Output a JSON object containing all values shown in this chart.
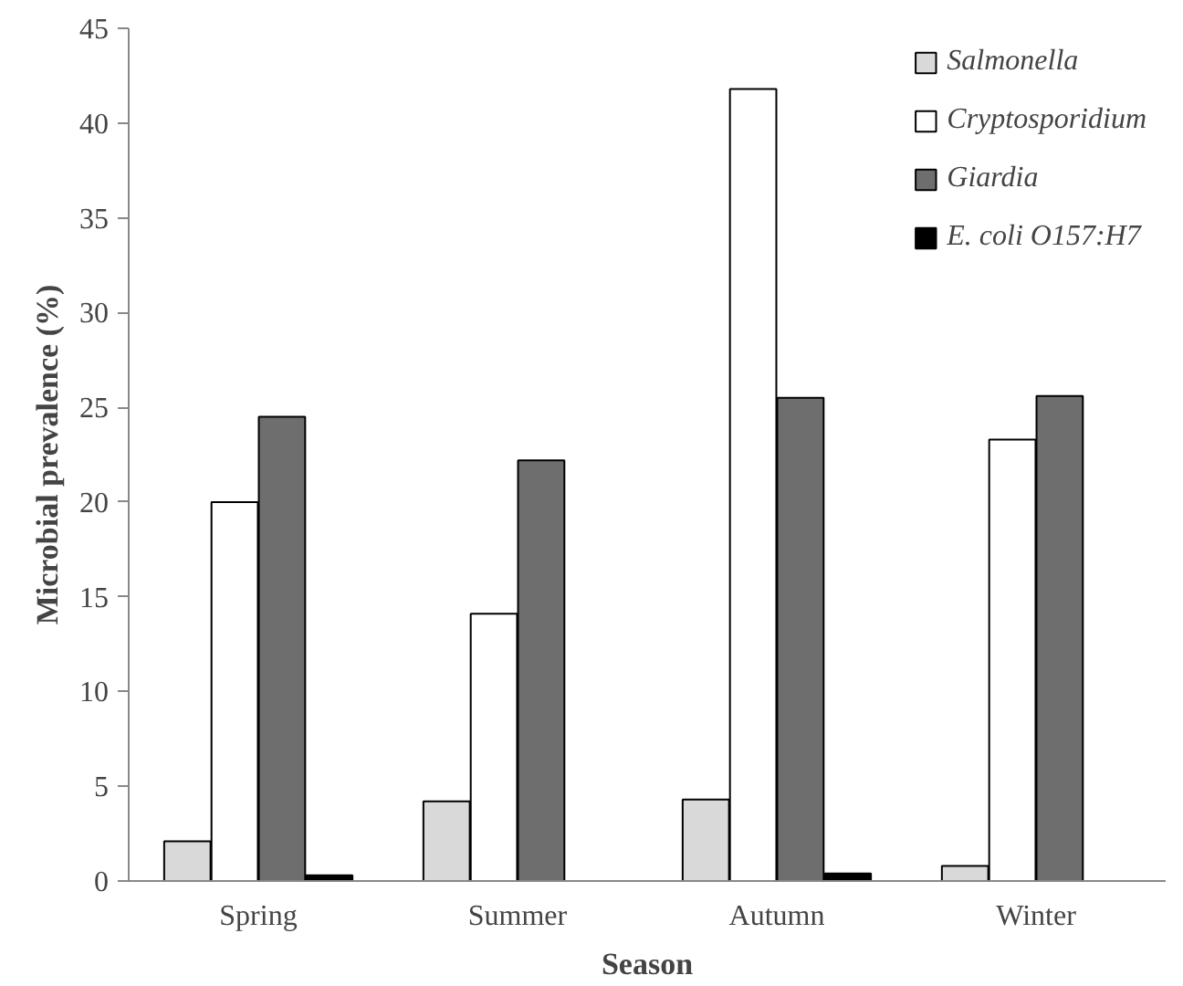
{
  "chart_data": {
    "type": "bar",
    "xlabel": "Season",
    "ylabel": "Microbial prevalence (%)",
    "categories": [
      "Spring",
      "Summer",
      "Autumn",
      "Winter"
    ],
    "series": [
      {
        "name": "Salmonella",
        "color": "#d9d9d9",
        "values": [
          2.1,
          4.2,
          4.3,
          0.8
        ]
      },
      {
        "name": "Cryptosporidium",
        "color": "#ffffff",
        "values": [
          20,
          14.1,
          41.8,
          23.3
        ]
      },
      {
        "name": "Giardia",
        "color": "#6e6e6e",
        "values": [
          24.5,
          22.2,
          25.5,
          25.6
        ]
      },
      {
        "name": "E. coli O157:H7",
        "color": "#000000",
        "values": [
          0.3,
          0,
          0.4,
          0
        ]
      }
    ],
    "ylim": [
      0,
      45
    ],
    "yticks": [
      0,
      5,
      10,
      15,
      20,
      25,
      30,
      35,
      40,
      45
    ],
    "grid": false,
    "legend": "top right"
  }
}
